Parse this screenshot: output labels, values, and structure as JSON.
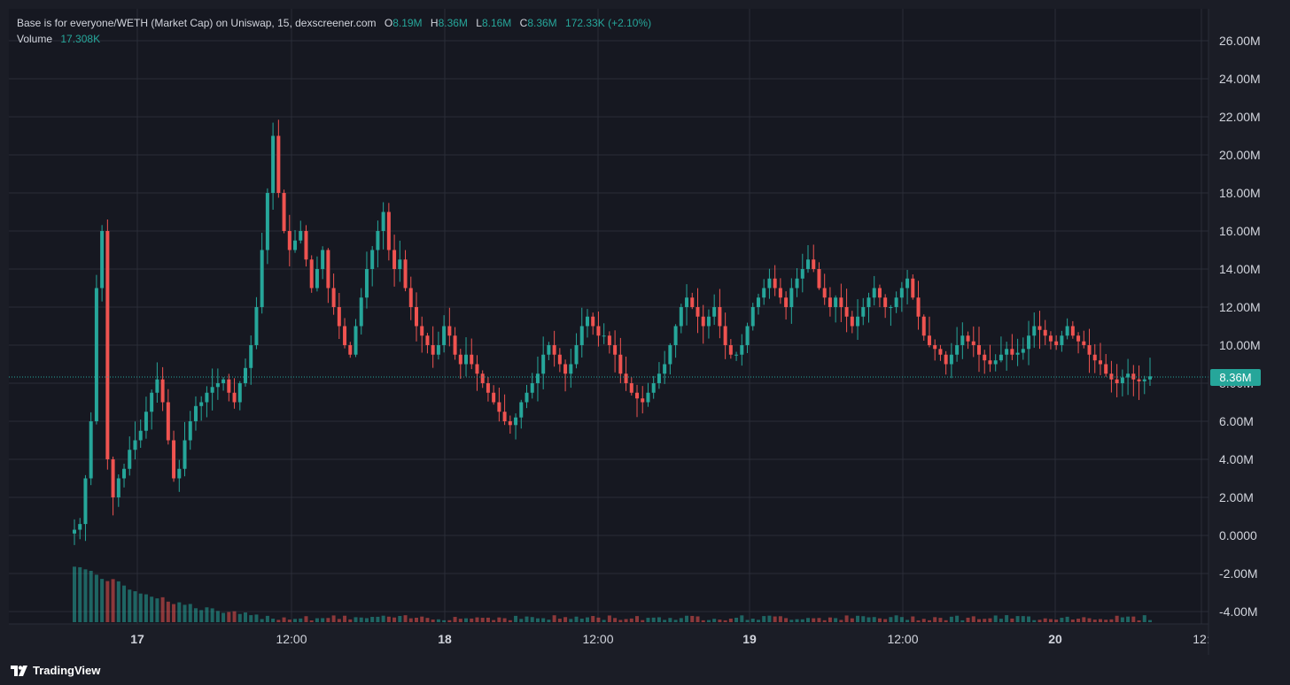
{
  "header": {
    "symbol": "Base is for everyone/WETH (Market Cap) on Uniswap, 15, dexscreener.com",
    "open_label": "O",
    "open": "8.19M",
    "high_label": "H",
    "high": "8.36M",
    "low_label": "L",
    "low": "8.16M",
    "close_label": "C",
    "close": "8.36M",
    "change": "172.33K (+2.10%)",
    "volume_label": "Volume",
    "volume": "17.308K"
  },
  "last_price_label": "8.36M",
  "footer": {
    "brand": "TradingView"
  },
  "colors": {
    "up": "#26a69a",
    "down": "#ef5350",
    "background": "#1b1d26",
    "grid": "#2a2d38"
  },
  "chart_data": {
    "type": "candlestick",
    "y_axis_labels": [
      "26.00M",
      "24.00M",
      "22.00M",
      "20.00M",
      "18.00M",
      "16.00M",
      "14.00M",
      "12.00M",
      "10.00M",
      "8.00M",
      "6.00M",
      "4.00M",
      "2.00M",
      "0.0000",
      "-2.00M",
      "-4.00M"
    ],
    "ylim": [
      -4.5,
      26.5
    ],
    "x_axis_labels": [
      "17",
      "12:00",
      "18",
      "12:00",
      "19",
      "12:00",
      "20",
      "12:"
    ],
    "last_value": 8.36,
    "close_series_millions": [
      0.3,
      0.6,
      3,
      6,
      13,
      16,
      4,
      2,
      3,
      3.5,
      4.5,
      5,
      5.5,
      6.5,
      7.5,
      8.2,
      7,
      5,
      3,
      3.5,
      5,
      6,
      6.8,
      7,
      7.5,
      7.8,
      8,
      8.2,
      7.5,
      7,
      8,
      8.8,
      10,
      12,
      15,
      18,
      21,
      18,
      16,
      15,
      15.5,
      16,
      14.5,
      13,
      14,
      15,
      13,
      12,
      11,
      10,
      9.5,
      11,
      12.5,
      14,
      15,
      16,
      17,
      15,
      14,
      14.5,
      13,
      12,
      11,
      10.5,
      10,
      9.5,
      10,
      11,
      10.5,
      9.5,
      9,
      9.5,
      9,
      8.5,
      8,
      7.5,
      7,
      6.5,
      6,
      5.8,
      6.2,
      7,
      7.5,
      8,
      8.5,
      9.5,
      10,
      9.5,
      9,
      8.5,
      9,
      10,
      11,
      11.5,
      11,
      10.5,
      10.5,
      10,
      9.5,
      8.5,
      8,
      7.5,
      7.2,
      7,
      7.5,
      8,
      8.5,
      9,
      10,
      11,
      12,
      12.5,
      12,
      11.5,
      11,
      11.5,
      12,
      11,
      10,
      9.5,
      9.5,
      10,
      11,
      12,
      12.5,
      13,
      13.5,
      13,
      12.5,
      12,
      13,
      13.5,
      14,
      14.5,
      14,
      13,
      12.5,
      12,
      12.5,
      12,
      11.5,
      11,
      11.5,
      12,
      12.5,
      13,
      12.5,
      12,
      12,
      12.5,
      13,
      13.5,
      12.5,
      11.5,
      10.5,
      10,
      9.8,
      9.5,
      9,
      9.5,
      10,
      10.5,
      10.2,
      10,
      9.5,
      9.2,
      9,
      9.2,
      9.5,
      9.8,
      9.5,
      9.6,
      9.8,
      10.5,
      11,
      10.8,
      10.5,
      10.2,
      10,
      10.5,
      11,
      10.5,
      10.2,
      10,
      9.5,
      9.2,
      9,
      8.5,
      8.2,
      8,
      8.3,
      8.5,
      8.2,
      8.1,
      8.2,
      8.36
    ]
  }
}
